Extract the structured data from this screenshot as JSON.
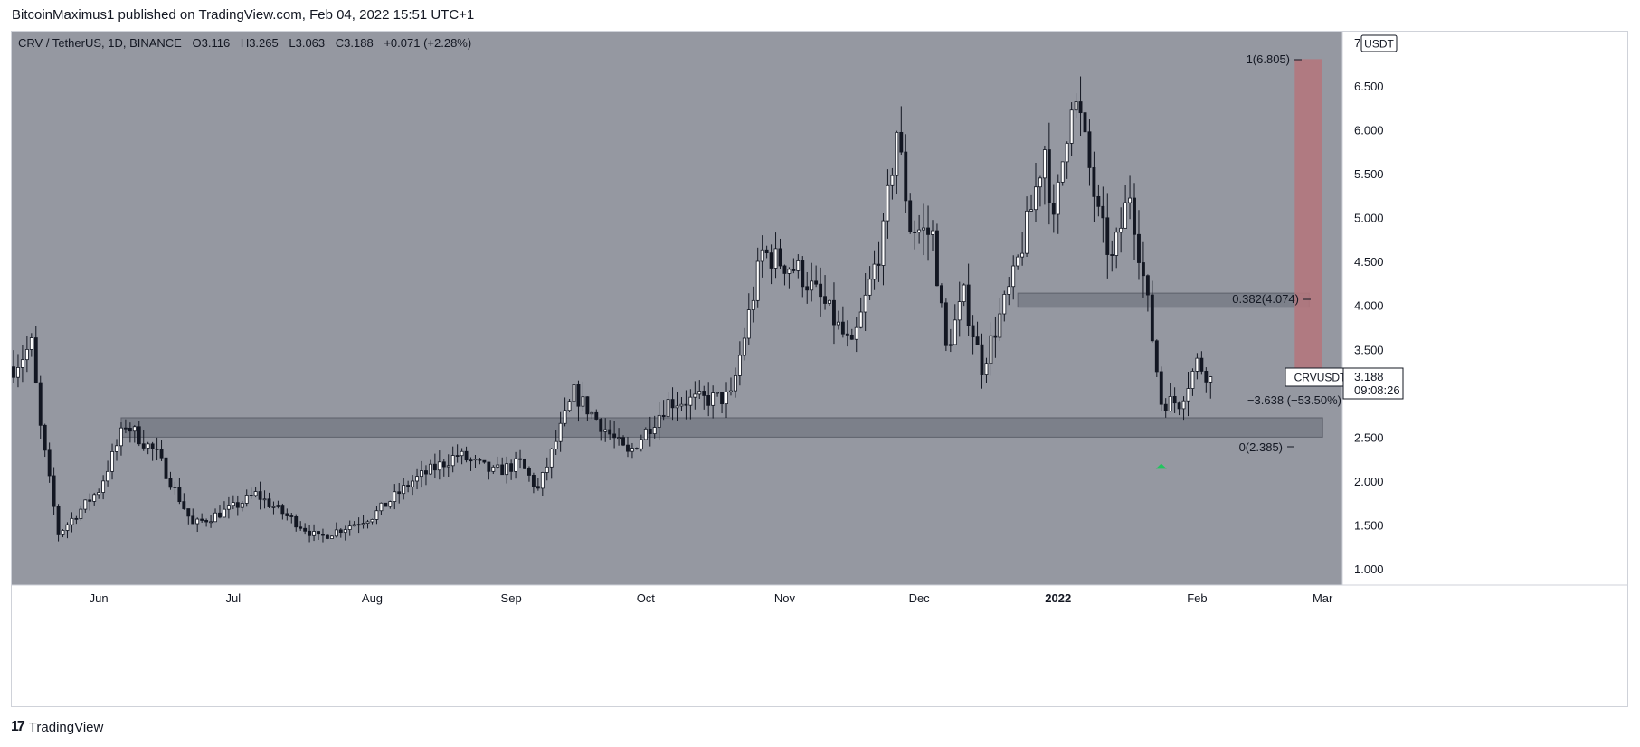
{
  "header": {
    "published_text": "BitcoinMaximus1 published on TradingView.com, Feb 04, 2022 15:51 UTC+1"
  },
  "legend": {
    "symbol": "CRV / TetherUS, 1D, BINANCE",
    "o_label": "O",
    "o_value": "3.116",
    "h_label": "H",
    "h_value": "3.265",
    "l_label": "L",
    "l_value": "3.063",
    "c_label": "C",
    "c_value": "3.188",
    "change": "+0.071 (+2.28%)"
  },
  "price_axis": {
    "currency": "USDT",
    "top_label": "7",
    "ticks": [
      "6.500",
      "6.000",
      "5.500",
      "5.000",
      "4.500",
      "4.000",
      "3.500",
      "2.500",
      "2.000",
      "1.500",
      "1.000"
    ]
  },
  "time_axis": {
    "labels": [
      "Jun",
      "Jul",
      "Aug",
      "Sep",
      "Oct",
      "Nov",
      "Dec",
      "2022",
      "Feb",
      "Mar"
    ]
  },
  "price_tag": {
    "symbol": "CRVUSDT",
    "price": "3.188",
    "countdown": "09:08:26"
  },
  "fib": {
    "level_1": "1(6.805)",
    "level_0382": "0.382(4.074)",
    "level_0": "0(2.385)",
    "measure": "−3.638 (−53.50%)"
  },
  "footer": {
    "brand": "TradingView",
    "logo_mark": "17"
  },
  "colors": {
    "plot_bg": "#9598a1",
    "bull_body": "#ffffff",
    "bear_body": "#131722",
    "wick": "#131722",
    "zone_fill": "#787b86",
    "red_box": "#b2777d",
    "arrow": "#22c55e"
  },
  "chart_data": {
    "type": "candlestick",
    "title": "CRV / TetherUS, 1D, BINANCE",
    "ylim": [
      0.8,
      7.0
    ],
    "x_start": "2021-05-13",
    "x_end": "2022-03-05",
    "support_zone": [
      2.5,
      2.72
    ],
    "resistance_zone": [
      3.98,
      4.14
    ],
    "fib_levels": [
      {
        "level": 1,
        "price": 6.805
      },
      {
        "level": 0.382,
        "price": 4.074
      },
      {
        "level": 0,
        "price": 2.385
      }
    ],
    "keyframes": [
      {
        "date": "2021-05-13",
        "price": 3.3
      },
      {
        "date": "2021-05-17",
        "price": 3.55
      },
      {
        "date": "2021-05-19",
        "price": 2.6
      },
      {
        "date": "2021-05-23",
        "price": 1.4
      },
      {
        "date": "2021-06-01",
        "price": 1.9
      },
      {
        "date": "2021-06-07",
        "price": 2.65
      },
      {
        "date": "2021-06-14",
        "price": 2.3
      },
      {
        "date": "2021-06-22",
        "price": 1.5
      },
      {
        "date": "2021-07-01",
        "price": 1.7
      },
      {
        "date": "2021-07-06",
        "price": 1.85
      },
      {
        "date": "2021-07-20",
        "price": 1.35
      },
      {
        "date": "2021-08-01",
        "price": 1.6
      },
      {
        "date": "2021-08-10",
        "price": 2.0
      },
      {
        "date": "2021-08-20",
        "price": 2.3
      },
      {
        "date": "2021-08-28",
        "price": 2.1
      },
      {
        "date": "2021-09-03",
        "price": 2.2
      },
      {
        "date": "2021-09-07",
        "price": 1.9
      },
      {
        "date": "2021-09-15",
        "price": 3.0
      },
      {
        "date": "2021-09-27",
        "price": 2.3
      },
      {
        "date": "2021-10-06",
        "price": 2.9
      },
      {
        "date": "2021-10-20",
        "price": 2.95
      },
      {
        "date": "2021-10-27",
        "price": 4.6
      },
      {
        "date": "2021-11-04",
        "price": 4.4
      },
      {
        "date": "2021-11-10",
        "price": 4.0
      },
      {
        "date": "2021-11-16",
        "price": 3.5
      },
      {
        "date": "2021-11-23",
        "price": 4.8
      },
      {
        "date": "2021-11-26",
        "price": 6.0
      },
      {
        "date": "2021-11-29",
        "price": 4.9
      },
      {
        "date": "2021-12-04",
        "price": 4.8
      },
      {
        "date": "2021-12-07",
        "price": 3.5
      },
      {
        "date": "2021-12-11",
        "price": 4.1
      },
      {
        "date": "2021-12-15",
        "price": 3.3
      },
      {
        "date": "2021-12-22",
        "price": 4.3
      },
      {
        "date": "2021-12-26",
        "price": 5.1
      },
      {
        "date": "2021-12-29",
        "price": 5.8
      },
      {
        "date": "2021-12-31",
        "price": 4.9
      },
      {
        "date": "2022-01-04",
        "price": 6.4
      },
      {
        "date": "2022-01-06",
        "price": 6.1
      },
      {
        "date": "2022-01-10",
        "price": 5.0
      },
      {
        "date": "2022-01-13",
        "price": 4.5
      },
      {
        "date": "2022-01-17",
        "price": 5.3
      },
      {
        "date": "2022-01-21",
        "price": 4.0
      },
      {
        "date": "2022-01-24",
        "price": 2.9
      },
      {
        "date": "2022-01-28",
        "price": 2.9
      },
      {
        "date": "2022-02-01",
        "price": 3.35
      },
      {
        "date": "2022-02-04",
        "price": 3.19
      }
    ]
  }
}
